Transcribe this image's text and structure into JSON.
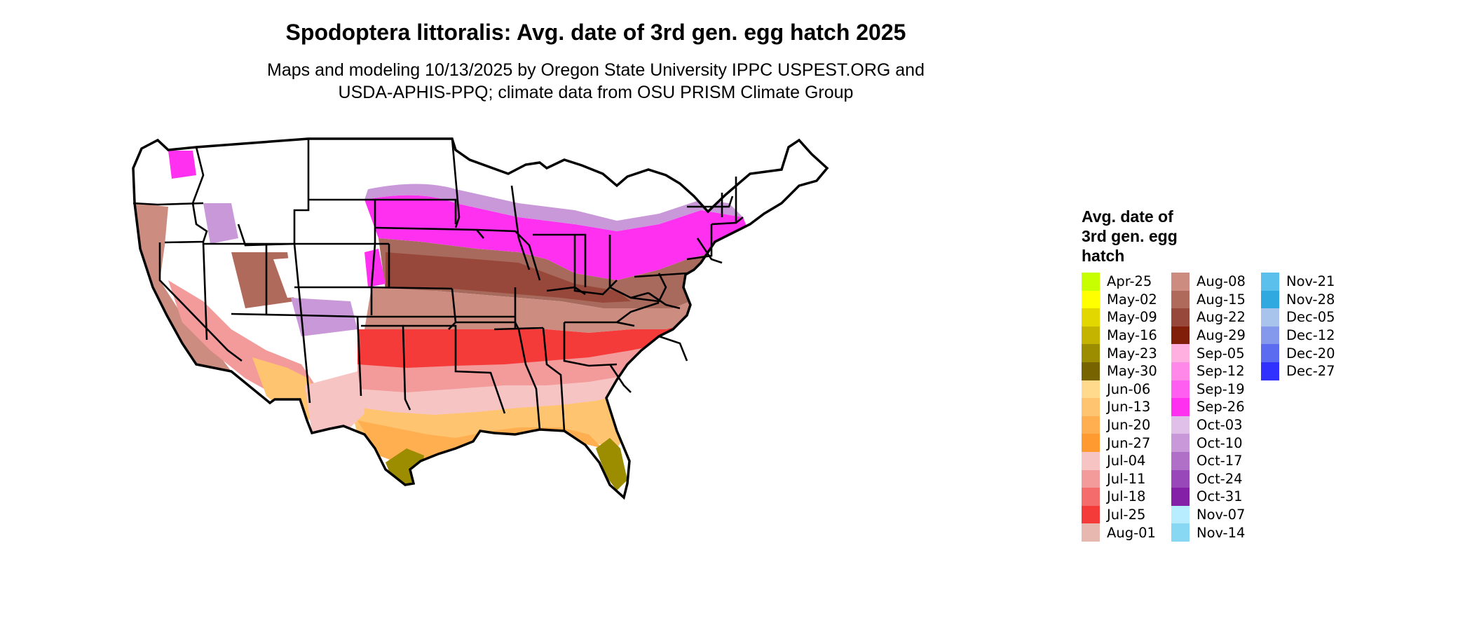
{
  "title": "Spodoptera littoralis: Avg. date of 3rd gen. egg hatch 2025",
  "subtitle_line1": "Maps and modeling 10/13/2025 by Oregon State University IPPC USPEST.ORG and",
  "subtitle_line2": "USDA-APHIS-PPQ; climate data from OSU PRISM Climate Group",
  "legend": {
    "title_lines": [
      "Avg. date of",
      "3rd gen. egg",
      "hatch"
    ],
    "items": [
      {
        "label": "Apr-25",
        "color": "#c8ff00"
      },
      {
        "label": "May-02",
        "color": "#ffff00"
      },
      {
        "label": "May-09",
        "color": "#e2d800"
      },
      {
        "label": "May-16",
        "color": "#c4b400"
      },
      {
        "label": "May-23",
        "color": "#9c8c00"
      },
      {
        "label": "May-30",
        "color": "#776400"
      },
      {
        "label": "Jun-06",
        "color": "#ffd98c"
      },
      {
        "label": "Jun-13",
        "color": "#ffc470"
      },
      {
        "label": "Jun-20",
        "color": "#ffaf50"
      },
      {
        "label": "Jun-27",
        "color": "#ff9a30"
      },
      {
        "label": "Jul-04",
        "color": "#f7c4c4"
      },
      {
        "label": "Jul-11",
        "color": "#f39a9a"
      },
      {
        "label": "Jul-18",
        "color": "#f56c6c"
      },
      {
        "label": "Jul-25",
        "color": "#f53a3a"
      },
      {
        "label": "Aug-01",
        "color": "#e7b8b0"
      },
      {
        "label": "Aug-08",
        "color": "#cc8c80"
      },
      {
        "label": "Aug-15",
        "color": "#b06a5c"
      },
      {
        "label": "Aug-22",
        "color": "#98483a"
      },
      {
        "label": "Aug-29",
        "color": "#801e0a"
      },
      {
        "label": "Sep-05",
        "color": "#ffb0e0"
      },
      {
        "label": "Sep-12",
        "color": "#ff88e8"
      },
      {
        "label": "Sep-19",
        "color": "#ff5ef0"
      },
      {
        "label": "Sep-26",
        "color": "#ff30f0"
      },
      {
        "label": "Oct-03",
        "color": "#e0c0e8"
      },
      {
        "label": "Oct-10",
        "color": "#c898d8"
      },
      {
        "label": "Oct-17",
        "color": "#b070c8"
      },
      {
        "label": "Oct-24",
        "color": "#9848b8"
      },
      {
        "label": "Oct-31",
        "color": "#8420a8"
      },
      {
        "label": "Nov-07",
        "color": "#b8ecff"
      },
      {
        "label": "Nov-14",
        "color": "#88d8f4"
      },
      {
        "label": "Nov-21",
        "color": "#5cc0ec"
      },
      {
        "label": "Nov-28",
        "color": "#30a8e0"
      },
      {
        "label": "Dec-05",
        "color": "#a8c4ec"
      },
      {
        "label": "Dec-12",
        "color": "#8498ec"
      },
      {
        "label": "Dec-20",
        "color": "#5c6cf0"
      },
      {
        "label": "Dec-27",
        "color": "#3030ff"
      }
    ]
  }
}
